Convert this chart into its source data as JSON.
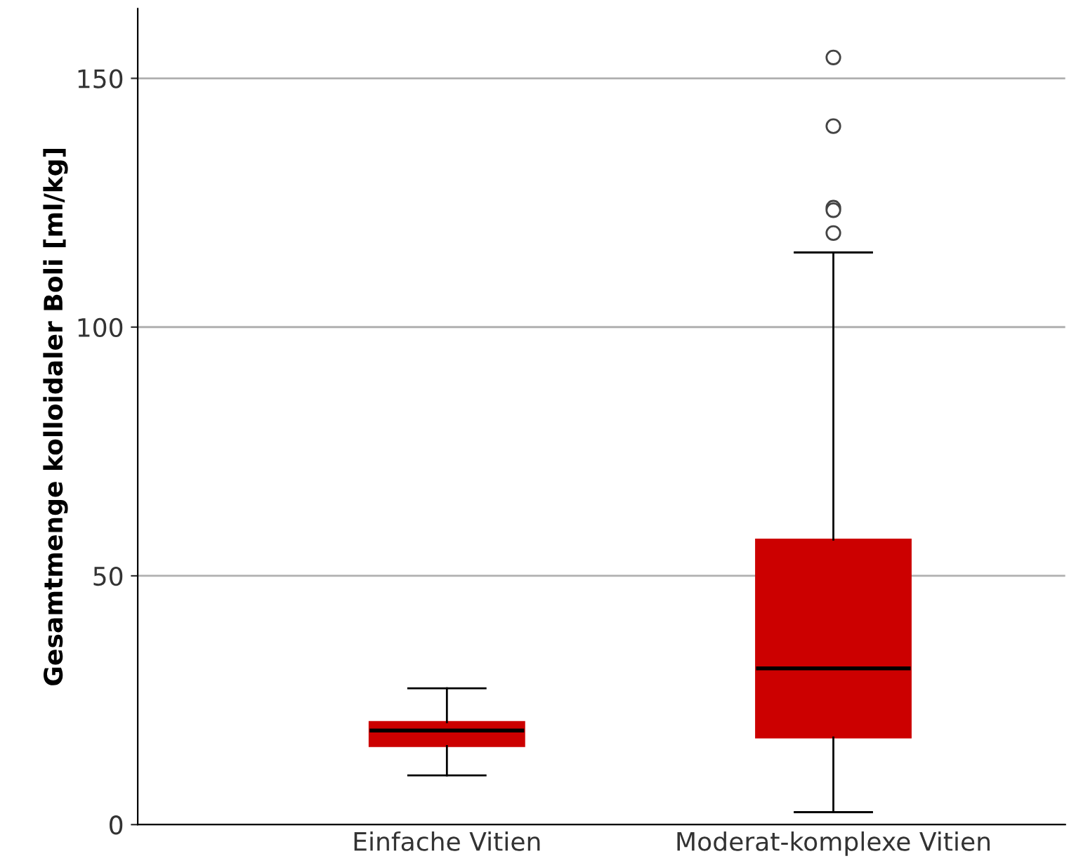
{
  "chart_data": {
    "type": "box",
    "ylabel": "Gesamtmenge kolloidaler Boli [ml/kg]",
    "categories": [
      "Einfache Vitien",
      "Moderat-komplexe Vitien"
    ],
    "color": "#cc0000",
    "boxes": [
      {
        "low": 9.9,
        "q1": 15.8,
        "median": 18.9,
        "q3": 20.6,
        "high": 27.4
      },
      {
        "low": 2.5,
        "q1": 17.5,
        "median": 31.4,
        "q3": 57.3,
        "high": 115,
        "outliers": [
          154.2,
          140.4,
          124,
          123.5,
          118.9
        ]
      }
    ],
    "ylim": [
      0,
      164
    ],
    "yticks": [
      0,
      50,
      100,
      150
    ],
    "grid": "y"
  }
}
